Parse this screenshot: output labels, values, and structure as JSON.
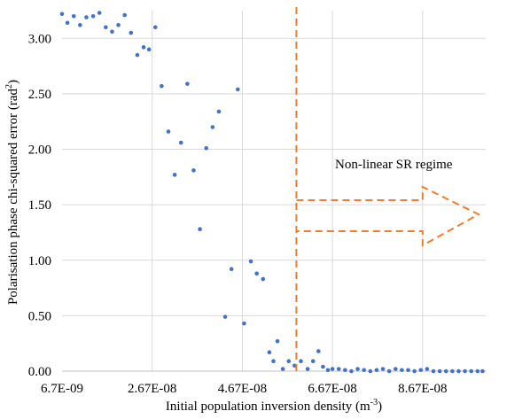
{
  "chart_data": {
    "type": "scatter",
    "xlabel": "Initial population inversion density (m",
    "xlabel_sup": "-3",
    "xlabel_end": ")",
    "ylabel": "Polarisation phase chi-squared error (rad",
    "ylabel_sup": "2",
    "ylabel_end": ")",
    "x_tick_labels": [
      "6.7E-09",
      "2.67E-08",
      "4.67E-08",
      "6.67E-08",
      "8.67E-08"
    ],
    "x_tick_values": [
      6.7e-09,
      2.67e-08,
      4.67e-08,
      6.67e-08,
      8.67e-08
    ],
    "y_tick_labels": [
      "0.00",
      "0.50",
      "1.00",
      "1.50",
      "2.00",
      "2.50",
      "3.00"
    ],
    "y_tick_values": [
      0,
      0.5,
      1,
      1.5,
      2,
      2.5,
      3
    ],
    "xlim": [
      6.7e-09,
      1.007e-07
    ],
    "ylim": [
      0,
      3.25
    ],
    "grid": true,
    "marker_color": "#4472C4",
    "annotation_color": "#ED7D31",
    "threshold_x": 5.87e-08,
    "annotation_text": "Non-linear SR regime",
    "x": [
      6.7e-09,
      7.9e-09,
      9.3e-09,
      1.07e-08,
      1.21e-08,
      1.36e-08,
      1.5e-08,
      1.64e-08,
      1.78e-08,
      1.92e-08,
      2.06e-08,
      2.2e-08,
      2.34e-08,
      2.48e-08,
      2.6e-08,
      2.74e-08,
      2.88e-08,
      3.03e-08,
      3.17e-08,
      3.31e-08,
      3.45e-08,
      3.59e-08,
      3.73e-08,
      3.87e-08,
      4.01e-08,
      4.15e-08,
      4.29e-08,
      4.43e-08,
      4.57e-08,
      4.71e-08,
      4.86e-08,
      4.99e-08,
      5.13e-08,
      5.27e-08,
      5.36e-08,
      5.45e-08,
      5.57e-08,
      5.7e-08,
      5.83e-08,
      5.97e-08,
      6.12e-08,
      6.24e-08,
      6.36e-08,
      6.46e-08,
      6.57e-08,
      6.67e-08,
      6.81e-08,
      6.95e-08,
      7.09e-08,
      7.23e-08,
      7.37e-08,
      7.51e-08,
      7.65e-08,
      7.79e-08,
      7.93e-08,
      8.07e-08,
      8.21e-08,
      8.35e-08,
      8.49e-08,
      8.63e-08,
      8.77e-08,
      8.91e-08,
      9.05e-08,
      9.19e-08,
      9.33e-08,
      9.47e-08,
      9.61e-08,
      9.75e-08,
      9.89e-08,
      1e-07
    ],
    "y": [
      3.22,
      3.14,
      3.2,
      3.12,
      3.19,
      3.2,
      3.23,
      3.1,
      3.06,
      3.12,
      3.21,
      3.05,
      2.85,
      2.92,
      2.9,
      3.1,
      2.57,
      2.16,
      1.77,
      2.06,
      2.59,
      1.81,
      1.28,
      2.01,
      2.2,
      2.34,
      0.49,
      0.92,
      2.54,
      0.43,
      0.99,
      0.88,
      0.83,
      0.17,
      0.09,
      0.27,
      0.02,
      0.09,
      0.05,
      0.09,
      0.02,
      0.09,
      0.18,
      0.04,
      0.01,
      0.02,
      0.02,
      0.01,
      0.0,
      0.02,
      0.01,
      0.0,
      0.01,
      0.02,
      0.0,
      0.02,
      0.01,
      0.01,
      0.0,
      0.01,
      0.02,
      0.0,
      0.0,
      0.0,
      0.0,
      0.0,
      0.0,
      0.0,
      0.0,
      0.0
    ]
  }
}
